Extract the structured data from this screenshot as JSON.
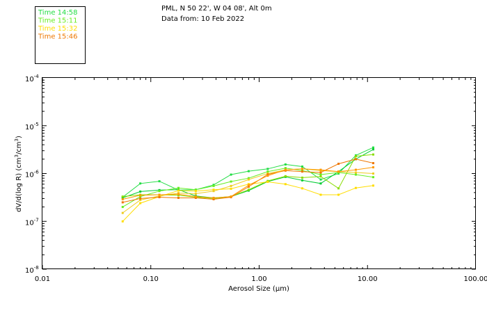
{
  "header": {
    "station": "PML, N 50 22', W 04 08', Alt 0m",
    "date_line": "Data from: 10 Feb 2022"
  },
  "chart_data": {
    "type": "line",
    "title": "PML, N 50 22', W 04 08', Alt 0m",
    "xlabel": "Aerosol Size (µm)",
    "ylabel": "dV/d(log R) (cm³/cm³)",
    "xscale": "log",
    "yscale": "log",
    "xlim": [
      0.01,
      100
    ],
    "ylim": [
      1e-08,
      0.0001
    ],
    "x_tick_labels": [
      {
        "value": 0.01,
        "label": "0.01"
      },
      {
        "value": 0.1,
        "label": "0.10"
      },
      {
        "value": 1,
        "label": "1.00"
      },
      {
        "value": 10,
        "label": "10.00"
      },
      {
        "value": 100,
        "label": "100.00"
      }
    ],
    "y_tick_labels": [
      {
        "value": 1e-08,
        "label": "10",
        "exp": "-8"
      },
      {
        "value": 1e-07,
        "label": "10",
        "exp": "-7"
      },
      {
        "value": 1e-06,
        "label": "10",
        "exp": "-6"
      },
      {
        "value": 1e-05,
        "label": "10",
        "exp": "-5"
      },
      {
        "value": 0.0001,
        "label": "10",
        "exp": "-4"
      }
    ],
    "legend_position": "top-left",
    "x": [
      0.055,
      0.08,
      0.12,
      0.18,
      0.26,
      0.38,
      0.55,
      0.8,
      1.2,
      1.75,
      2.5,
      3.7,
      5.4,
      7.8,
      11.3
    ],
    "series": [
      {
        "name": "Time 14:58",
        "color": "#22dd44",
        "values": [
          3.2e-07,
          6.2e-07,
          6.9e-07,
          4.5e-07,
          4.6e-07,
          5.8e-07,
          9.5e-07,
          1.12e-06,
          1.25e-06,
          1.55e-06,
          1.4e-06,
          7.5e-07,
          1e-06,
          2.4e-06,
          3.5e-06
        ]
      },
      {
        "name": "Time 14:58",
        "color": "#00cc33",
        "values": [
          3.1e-07,
          4.2e-07,
          4.5e-07,
          4.6e-07,
          3.4e-07,
          3.1e-07,
          3.3e-07,
          4.4e-07,
          6.8e-07,
          8.5e-07,
          7.2e-07,
          6.2e-07,
          1.1e-06,
          2e-06,
          3.2e-06
        ]
      },
      {
        "name": "Time 15:11",
        "color": "#66ee22",
        "values": [
          2e-07,
          3.3e-07,
          4.3e-07,
          5e-07,
          4.6e-07,
          5.5e-07,
          6.8e-07,
          8e-07,
          1.1e-06,
          1.3e-06,
          1.15e-06,
          9.5e-07,
          1.05e-06,
          9.5e-07,
          8.4e-07
        ]
      },
      {
        "name": "Time 15:11",
        "color": "#88dd00",
        "values": [
          3.3e-07,
          3.6e-07,
          3.6e-07,
          3.5e-07,
          3.2e-07,
          3e-07,
          3.3e-07,
          4.6e-07,
          7e-07,
          8.8e-07,
          8.2e-07,
          8.7e-07,
          4.9e-07,
          2.3e-06,
          2.5e-06
        ]
      },
      {
        "name": "Time 15:32",
        "color": "#ffdd00",
        "values": [
          1e-07,
          2.4e-07,
          3.3e-07,
          4.4e-07,
          4.3e-07,
          4.6e-07,
          4.8e-07,
          6e-07,
          6.7e-07,
          6e-07,
          4.9e-07,
          3.6e-07,
          3.6e-07,
          5e-07,
          5.6e-07
        ]
      },
      {
        "name": "Time 15:32",
        "color": "#eecc22",
        "values": [
          1.5e-07,
          2.8e-07,
          3.4e-07,
          3.9e-07,
          3.8e-07,
          4.3e-07,
          5.5e-07,
          7.5e-07,
          1e-06,
          1.2e-06,
          1.25e-06,
          1.15e-06,
          1.1e-06,
          1.05e-06,
          1e-06
        ]
      },
      {
        "name": "Time 15:46",
        "color": "#ee7700",
        "values": [
          2.5e-07,
          3e-07,
          3.2e-07,
          3.1e-07,
          3.1e-07,
          2.9e-07,
          3.2e-07,
          5.3e-07,
          9.6e-07,
          1.15e-06,
          1.1e-06,
          1.05e-06,
          1.6e-06,
          2e-06,
          1.65e-06
        ]
      },
      {
        "name": "Time 15:46",
        "color": "#ff9900",
        "values": [
          2.9e-07,
          3.5e-07,
          3.6e-07,
          3.7e-07,
          3.3e-07,
          3.1e-07,
          3.3e-07,
          5.7e-07,
          9e-07,
          1.2e-06,
          1.25e-06,
          1.2e-06,
          1.1e-06,
          1.2e-06,
          1.35e-06
        ]
      }
    ]
  },
  "legend": [
    {
      "label": "Time 14:58",
      "color": "#22dd44"
    },
    {
      "label": "Time 15:11",
      "color": "#66ee22"
    },
    {
      "label": "Time 15:32",
      "color": "#ffdd00"
    },
    {
      "label": "Time 15:46",
      "color": "#ee7700"
    }
  ]
}
